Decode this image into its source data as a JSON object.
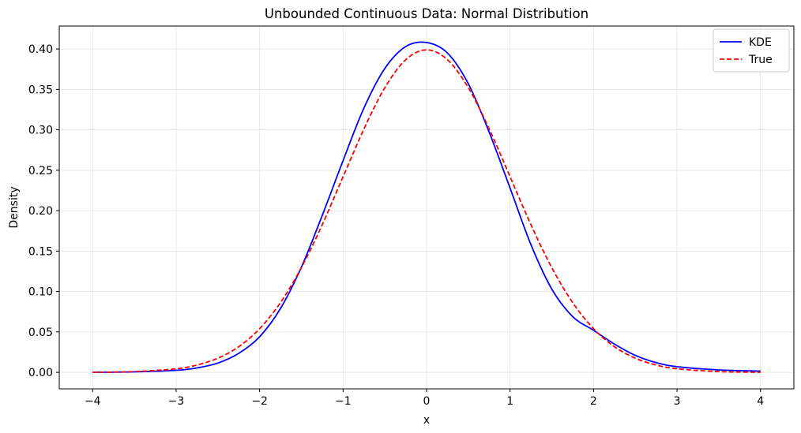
{
  "chart_data": {
    "type": "line",
    "title": "Unbounded Continuous Data: Normal Distribution",
    "xlabel": "x",
    "ylabel": "Density",
    "xlim": [
      -4.4,
      4.4
    ],
    "ylim": [
      -0.0204,
      0.4284
    ],
    "xticks": [
      -4,
      -3,
      -2,
      -1,
      0,
      1,
      2,
      3,
      4
    ],
    "xtick_labels": [
      "−4",
      "−3",
      "−2",
      "−1",
      "0",
      "1",
      "2",
      "3",
      "4"
    ],
    "yticks": [
      0.0,
      0.05,
      0.1,
      0.15,
      0.2,
      0.25,
      0.3,
      0.35,
      0.4
    ],
    "ytick_labels": [
      "0.00",
      "0.05",
      "0.10",
      "0.15",
      "0.20",
      "0.25",
      "0.30",
      "0.35",
      "0.40"
    ],
    "grid": true,
    "legend_position": "top-right",
    "series": [
      {
        "name": "KDE",
        "color": "#0000ff",
        "style": "solid",
        "x": [
          -4.0,
          -3.5,
          -3.0,
          -2.75,
          -2.5,
          -2.25,
          -2.0,
          -1.75,
          -1.5,
          -1.25,
          -1.0,
          -0.75,
          -0.5,
          -0.25,
          0.0,
          0.25,
          0.5,
          0.75,
          1.0,
          1.25,
          1.5,
          1.75,
          2.0,
          2.25,
          2.5,
          2.75,
          3.0,
          3.5,
          4.0
        ],
        "y": [
          0.0002,
          0.0006,
          0.0025,
          0.0055,
          0.0115,
          0.0235,
          0.044,
          0.079,
          0.13,
          0.194,
          0.262,
          0.327,
          0.376,
          0.403,
          0.408,
          0.395,
          0.357,
          0.297,
          0.228,
          0.158,
          0.103,
          0.069,
          0.052,
          0.035,
          0.021,
          0.012,
          0.007,
          0.003,
          0.0015
        ]
      },
      {
        "name": "True",
        "color": "#ff0000",
        "style": "dashed",
        "x": [
          -4.0,
          -3.5,
          -3.0,
          -2.75,
          -2.5,
          -2.25,
          -2.0,
          -1.75,
          -1.5,
          -1.25,
          -1.0,
          -0.75,
          -0.5,
          -0.25,
          0.0,
          0.25,
          0.5,
          0.75,
          1.0,
          1.25,
          1.5,
          1.75,
          2.0,
          2.25,
          2.5,
          2.75,
          3.0,
          3.5,
          4.0
        ],
        "y": [
          0.0001,
          0.0009,
          0.0044,
          0.0091,
          0.0175,
          0.0317,
          0.054,
          0.0863,
          0.1295,
          0.1826,
          0.242,
          0.3011,
          0.3521,
          0.3867,
          0.3989,
          0.3867,
          0.3521,
          0.3011,
          0.242,
          0.1826,
          0.1295,
          0.0863,
          0.054,
          0.0317,
          0.0175,
          0.0091,
          0.0044,
          0.0009,
          0.0001
        ]
      }
    ]
  }
}
